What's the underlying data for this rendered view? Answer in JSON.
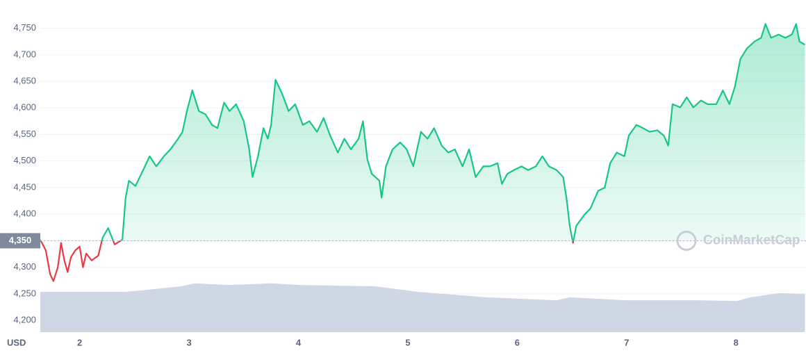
{
  "chart_data": {
    "type": "line",
    "y_unit": "USD",
    "watermark": "CoinMarketCap",
    "xlim": [
      1.64,
      8.64
    ],
    "xticks": [
      2,
      3,
      4,
      5,
      6,
      7,
      8
    ],
    "ylim": [
      4178,
      4790
    ],
    "yticks": [
      {
        "value": 4200,
        "label": "4,200"
      },
      {
        "value": 4250,
        "label": "4,250"
      },
      {
        "value": 4300,
        "label": "4,300"
      },
      {
        "value": 4350,
        "label": "4,350"
      },
      {
        "value": 4400,
        "label": "4,400"
      },
      {
        "value": 4450,
        "label": "4,450"
      },
      {
        "value": 4500,
        "label": "4,500"
      },
      {
        "value": 4550,
        "label": "4,550"
      },
      {
        "value": 4600,
        "label": "4,600"
      },
      {
        "value": 4650,
        "label": "4,650"
      },
      {
        "value": 4700,
        "label": "4,700"
      },
      {
        "value": 4750,
        "label": "4,750"
      }
    ],
    "grid": true,
    "reference_line": {
      "value": 4350,
      "label": "4,350"
    },
    "up_color": "#16c784",
    "down_color": "#ea3943",
    "series": [
      {
        "name": "price",
        "x": [
          1.64,
          1.69,
          1.73,
          1.76,
          1.8,
          1.83,
          1.86,
          1.89,
          1.92,
          1.96,
          2.0,
          2.03,
          2.06,
          2.11,
          2.17,
          2.21,
          2.26,
          2.32,
          2.39,
          2.42,
          2.45,
          2.51,
          2.58,
          2.64,
          2.7,
          2.77,
          2.83,
          2.9,
          2.94,
          2.98,
          3.03,
          3.09,
          3.15,
          3.21,
          3.26,
          3.32,
          3.37,
          3.43,
          3.5,
          3.55,
          3.58,
          3.63,
          3.68,
          3.72,
          3.75,
          3.79,
          3.85,
          3.91,
          3.97,
          4.04,
          4.1,
          4.17,
          4.23,
          4.29,
          4.36,
          4.42,
          4.48,
          4.55,
          4.59,
          4.63,
          4.67,
          4.74,
          4.76,
          4.8,
          4.86,
          4.93,
          4.99,
          5.05,
          5.12,
          5.18,
          5.24,
          5.31,
          5.37,
          5.43,
          5.5,
          5.56,
          5.62,
          5.69,
          5.75,
          5.82,
          5.86,
          5.91,
          5.97,
          6.04,
          6.1,
          6.17,
          6.23,
          6.29,
          6.36,
          6.42,
          6.45,
          6.48,
          6.51,
          6.54,
          6.61,
          6.67,
          6.74,
          6.8,
          6.85,
          6.91,
          6.98,
          7.02,
          7.09,
          7.15,
          7.21,
          7.28,
          7.34,
          7.38,
          7.42,
          7.49,
          7.55,
          7.61,
          7.68,
          7.74,
          7.82,
          7.88,
          7.94,
          7.99,
          8.04,
          8.1,
          8.17,
          8.23,
          8.27,
          8.32,
          8.39,
          8.45,
          8.51,
          8.55,
          8.58,
          8.63
        ],
        "values": [
          4352,
          4332,
          4287,
          4274,
          4300,
          4346,
          4313,
          4291,
          4319,
          4332,
          4339,
          4300,
          4326,
          4313,
          4322,
          4356,
          4374,
          4343,
          4352,
          4431,
          4463,
          4453,
          4483,
          4509,
          4490,
          4509,
          4522,
          4542,
          4555,
          4594,
          4633,
          4594,
          4588,
          4568,
          4562,
          4610,
          4594,
          4607,
          4575,
          4522,
          4470,
          4509,
          4562,
          4542,
          4568,
          4653,
          4627,
          4594,
          4607,
          4568,
          4575,
          4555,
          4581,
          4548,
          4516,
          4542,
          4522,
          4542,
          4575,
          4503,
          4476,
          4463,
          4431,
          4490,
          4522,
          4535,
          4522,
          4490,
          4555,
          4542,
          4562,
          4529,
          4516,
          4522,
          4490,
          4522,
          4470,
          4490,
          4490,
          4496,
          4457,
          4476,
          4483,
          4490,
          4483,
          4490,
          4509,
          4490,
          4483,
          4470,
          4431,
          4378,
          4346,
          4378,
          4398,
          4411,
          4444,
          4450,
          4496,
          4516,
          4509,
          4548,
          4568,
          4562,
          4555,
          4558,
          4548,
          4529,
          4607,
          4601,
          4620,
          4601,
          4614,
          4607,
          4607,
          4633,
          4607,
          4640,
          4692,
          4712,
          4725,
          4732,
          4758,
          4732,
          4738,
          4732,
          4738,
          4758,
          4725,
          4719
        ]
      },
      {
        "name": "volume",
        "axis": "y2",
        "color": "#cfd6e4",
        "x": [
          1.64,
          2.42,
          2.55,
          2.93,
          3.05,
          3.37,
          3.75,
          4.01,
          4.7,
          5.09,
          5.72,
          6.36,
          6.48,
          6.99,
          7.63,
          8.01,
          8.13,
          8.39,
          8.63
        ],
        "values": [
          12.4,
          12.4,
          12.8,
          14.1,
          15.0,
          14.5,
          15.0,
          14.5,
          14.1,
          12.4,
          10.7,
          9.8,
          10.7,
          9.8,
          9.8,
          9.6,
          10.7,
          12.0,
          11.8
        ]
      }
    ],
    "y2lim": [
      0,
      100
    ]
  }
}
